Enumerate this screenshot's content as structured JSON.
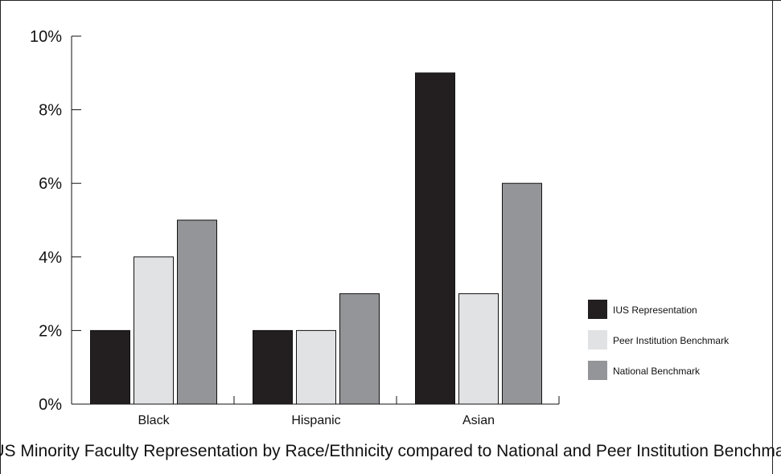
{
  "chart_data": {
    "type": "bar",
    "title": "IUS Minority Faculty Representation by Race/Ethnicity compared to National and Peer Institution Benchmarks",
    "categories": [
      "Black",
      "Hispanic",
      "Asian"
    ],
    "series": [
      {
        "name": "IUS Representation",
        "values": [
          2,
          2,
          9
        ],
        "color": "#231f20"
      },
      {
        "name": "Peer Institution Benchmark",
        "values": [
          4,
          2,
          3
        ],
        "color": "#e1e2e3"
      },
      {
        "name": "National Benchmark",
        "values": [
          5,
          3,
          6
        ],
        "color": "#939598"
      }
    ],
    "ylim": [
      0,
      10
    ],
    "y_ticks": [
      0,
      2,
      4,
      6,
      8,
      10
    ],
    "y_tick_labels": [
      "0%",
      "2%",
      "4%",
      "6%",
      "8%",
      "10%"
    ],
    "xlabel": "",
    "ylabel": "",
    "grid": false,
    "legend_position": "right"
  }
}
